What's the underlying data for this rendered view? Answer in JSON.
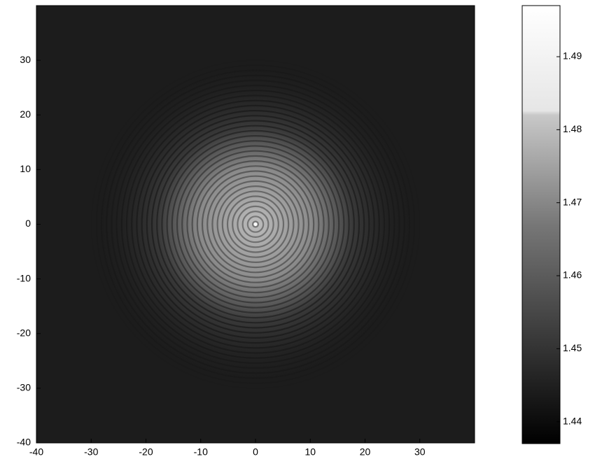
{
  "chart_data": {
    "type": "heatmap",
    "xlim": [
      -40,
      40
    ],
    "xticks": [
      -40,
      -30,
      -20,
      -10,
      0,
      10,
      20,
      30
    ],
    "ylim": [
      -40,
      40
    ],
    "yticks": [
      -40,
      -30,
      -20,
      -10,
      0,
      10,
      20,
      30
    ],
    "colormap": "gray",
    "clim": [
      1.437,
      1.497
    ],
    "cticks": [
      1.44,
      1.45,
      1.46,
      1.47,
      1.48,
      1.49
    ]
  }
}
